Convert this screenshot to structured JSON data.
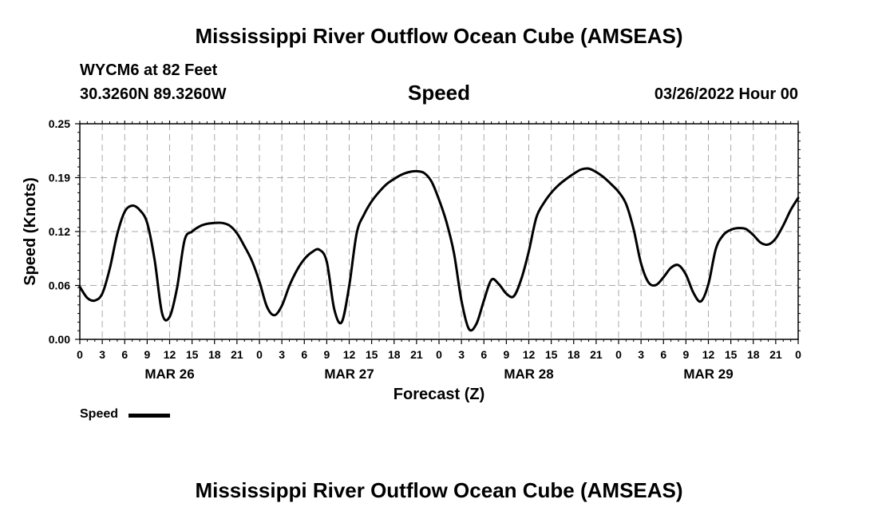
{
  "header": {
    "title": "Mississippi River Outflow Ocean Cube (AMSEAS)",
    "station": "WYCM6 at 82 Feet",
    "coordinates": "30.3260N  89.3260W",
    "forecast_time": "03/26/2022 Hour 00"
  },
  "footer": {
    "title": "Mississippi River Outflow Ocean Cube (AMSEAS)"
  },
  "legend": {
    "label": "Speed",
    "color": "#000000"
  },
  "chart_data": {
    "type": "line",
    "title": "Speed",
    "xlabel": "Forecast (Z)",
    "ylabel": "Speed (Knots)",
    "ylim": [
      0,
      0.25
    ],
    "xlim": [
      0,
      96
    ],
    "y_ticks": [
      "0.00",
      "0.06",
      "0.12",
      "0.19",
      "0.25"
    ],
    "x_tick_labels": [
      "0",
      "3",
      "6",
      "9",
      "12",
      "15",
      "18",
      "21",
      "0",
      "3",
      "6",
      "9",
      "12",
      "15",
      "18",
      "21",
      "0",
      "3",
      "6",
      "9",
      "12",
      "15",
      "18",
      "21",
      "0",
      "3",
      "6",
      "9",
      "12",
      "15",
      "18",
      "21",
      "0"
    ],
    "day_labels": [
      "MAR 26",
      "MAR 27",
      "MAR 28",
      "MAR 29"
    ],
    "grid": true,
    "series": [
      {
        "name": "Speed",
        "color": "#000000",
        "x": [
          0,
          1,
          2,
          3,
          4,
          5,
          6,
          7,
          8,
          9,
          10,
          11,
          12,
          13,
          14,
          15,
          16,
          17,
          18,
          19,
          20,
          21,
          22,
          23,
          24,
          25,
          26,
          27,
          28,
          29,
          30,
          31,
          32,
          33,
          34,
          35,
          36,
          37,
          38,
          39,
          40,
          41,
          42,
          43,
          44,
          45,
          46,
          47,
          48,
          49,
          50,
          51,
          52,
          53,
          54,
          55,
          56,
          57,
          58,
          59,
          60,
          61,
          62,
          63,
          64,
          65,
          66,
          67,
          68,
          69,
          70,
          71,
          72,
          73,
          74,
          75,
          76,
          77,
          78,
          79,
          80,
          81,
          82,
          83,
          84,
          85,
          86,
          87,
          88,
          89,
          90,
          91,
          92,
          93,
          94,
          95,
          96
        ],
        "values": [
          0.061,
          0.048,
          0.045,
          0.053,
          0.082,
          0.122,
          0.148,
          0.155,
          0.15,
          0.135,
          0.092,
          0.03,
          0.026,
          0.06,
          0.115,
          0.125,
          0.131,
          0.134,
          0.135,
          0.135,
          0.132,
          0.123,
          0.108,
          0.091,
          0.067,
          0.038,
          0.028,
          0.039,
          0.062,
          0.08,
          0.093,
          0.101,
          0.104,
          0.09,
          0.035,
          0.02,
          0.062,
          0.123,
          0.145,
          0.16,
          0.171,
          0.18,
          0.186,
          0.191,
          0.194,
          0.195,
          0.193,
          0.183,
          0.162,
          0.136,
          0.1,
          0.045,
          0.012,
          0.018,
          0.045,
          0.069,
          0.064,
          0.053,
          0.05,
          0.07,
          0.102,
          0.141,
          0.158,
          0.17,
          0.179,
          0.186,
          0.192,
          0.197,
          0.198,
          0.194,
          0.188,
          0.18,
          0.171,
          0.157,
          0.128,
          0.088,
          0.066,
          0.063,
          0.072,
          0.083,
          0.086,
          0.075,
          0.054,
          0.044,
          0.064,
          0.105,
          0.121,
          0.127,
          0.129,
          0.128,
          0.121,
          0.112,
          0.11,
          0.117,
          0.132,
          0.15,
          0.164
        ]
      }
    ]
  }
}
